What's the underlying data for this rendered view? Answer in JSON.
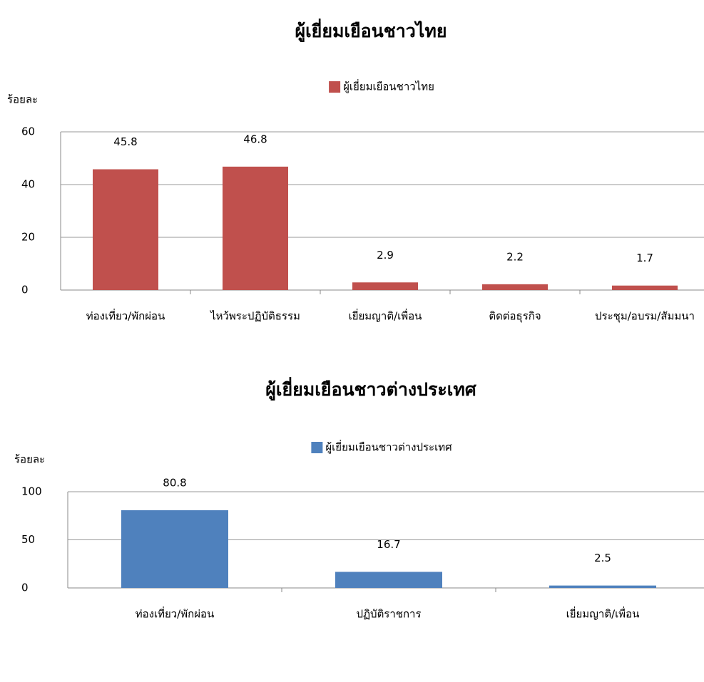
{
  "chart_data": [
    {
      "type": "bar",
      "title": "ผู้เยี่ยมเยือนชาวไทย",
      "y_label": "ร้อยละ",
      "categories": [
        "ท่องเที่ยว/พักผ่อน",
        "ไหว้พระปฏิบัติธรรม",
        "เยี่ยมญาติ/เพื่อน",
        "ติดต่อธุรกิจ",
        "ประชุม/อบรม/สัมมนา"
      ],
      "series": [
        {
          "name": "ผู้เยี่ยมเยือนชาวไทย",
          "color": "#c0504d",
          "values": [
            45.8,
            46.8,
            2.9,
            2.2,
            1.7
          ]
        }
      ],
      "ylim": [
        0,
        60
      ],
      "yticks": [
        0,
        20,
        40,
        60
      ],
      "grid": true,
      "legend": "top"
    },
    {
      "type": "bar",
      "title": "ผู้เยี่ยมเยือนชาวต่างประเทศ",
      "y_label": "ร้อยละ",
      "categories": [
        "ท่องเที่ยว/พักผ่อน",
        "ปฏิบัติราชการ",
        "เยี่ยมญาติ/เพื่อน"
      ],
      "series": [
        {
          "name": "ผู้เยี่ยมเยือนชาวต่างประเทศ",
          "color": "#4f81bd",
          "values": [
            80.8,
            16.7,
            2.5
          ]
        }
      ],
      "ylim": [
        0,
        100
      ],
      "yticks": [
        0,
        50,
        100
      ],
      "grid": true,
      "legend": "top"
    }
  ]
}
